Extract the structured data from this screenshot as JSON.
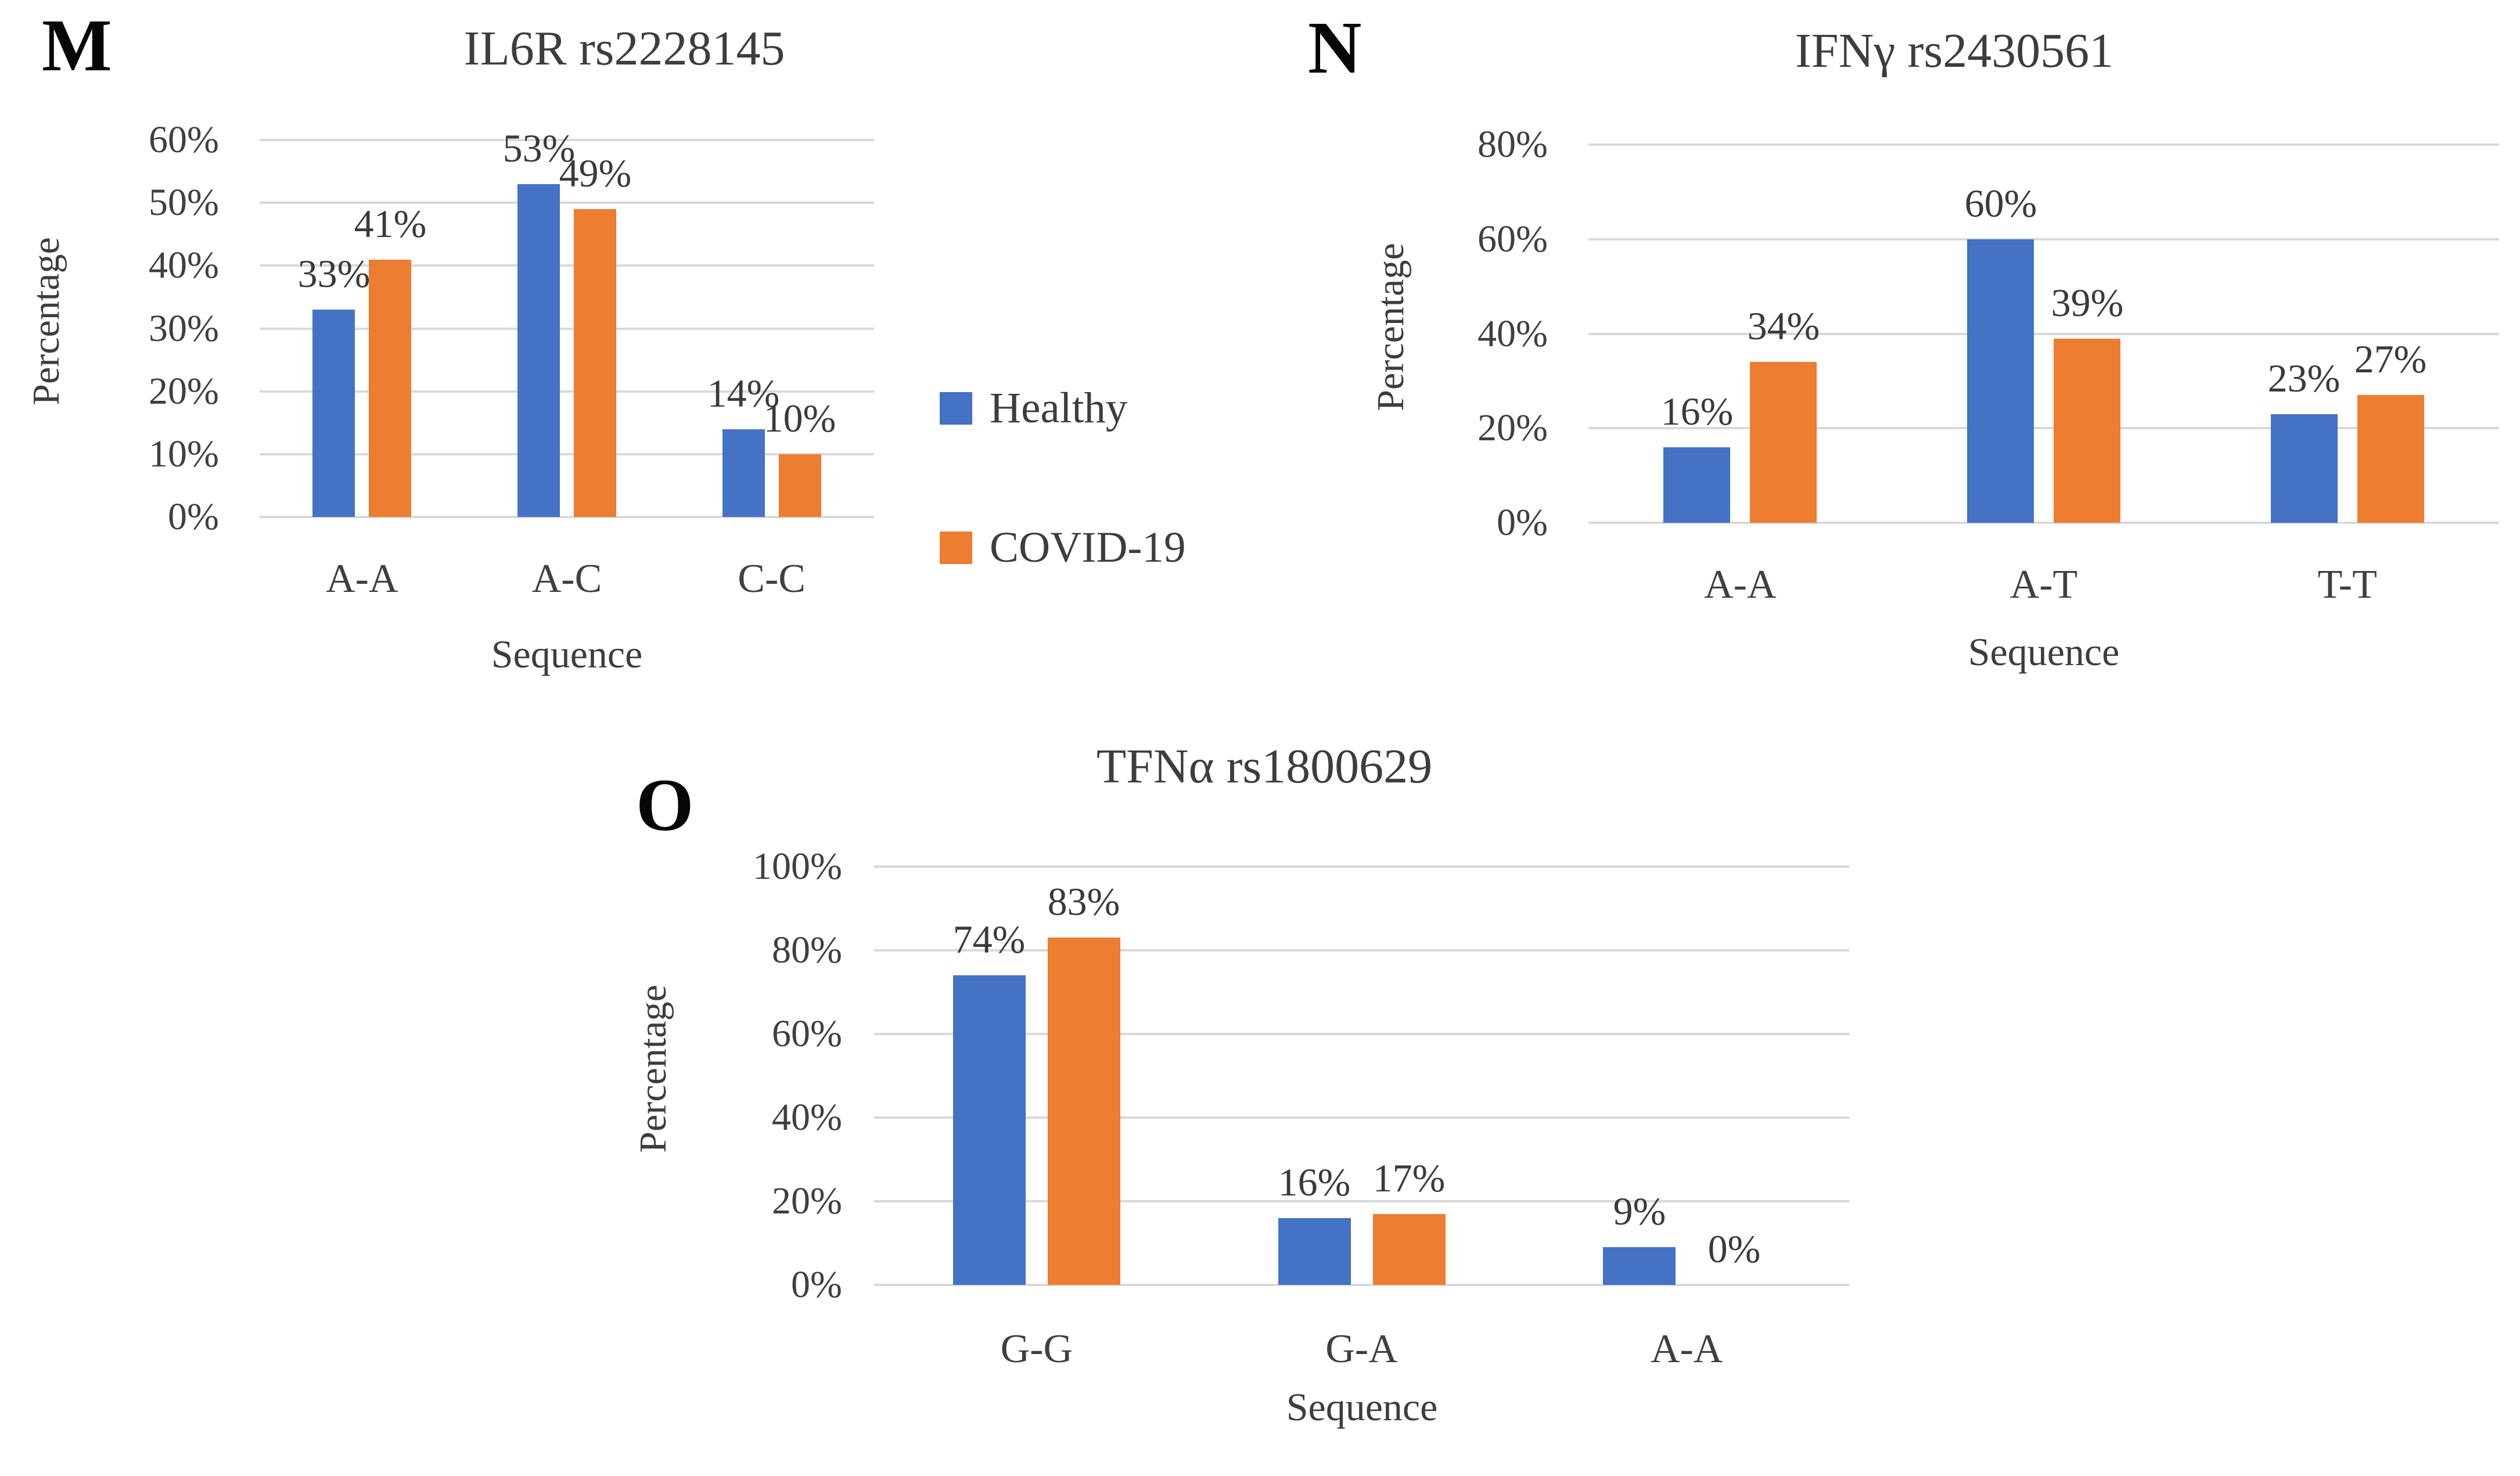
{
  "figure": {
    "background": "#ffffff",
    "description": "Three grouped bar charts comparing genotype frequencies in Healthy vs COVID-19 groups"
  },
  "colors": {
    "healthy": "#4472C4",
    "covid": "#ED7D31",
    "gridline": "#D9D9D9",
    "text": "#3f3f3f"
  },
  "legend": {
    "items": [
      {
        "label": "Healthy",
        "color": "#4472C4"
      },
      {
        "label": "COVID-19",
        "color": "#ED7D31"
      }
    ]
  },
  "chart_data": [
    {
      "type": "bar",
      "panel_label": "M",
      "title": "IL6R rs2228145",
      "xlabel": "Sequence",
      "ylabel": "Percentage",
      "categories": [
        "A-A",
        "A-C",
        "C-C"
      ],
      "series": [
        {
          "name": "Healthy",
          "color": "#4472C4",
          "values": [
            33,
            53,
            14
          ],
          "labels": [
            "33%",
            "53%",
            "14%"
          ]
        },
        {
          "name": "COVID-19",
          "color": "#ED7D31",
          "values": [
            41,
            49,
            10
          ],
          "labels": [
            "41%",
            "49%",
            "10%"
          ]
        }
      ],
      "ylim": [
        0,
        60
      ],
      "yticks": [
        {
          "value": 0,
          "label": "0%"
        },
        {
          "value": 10,
          "label": "10%"
        },
        {
          "value": 20,
          "label": "20%"
        },
        {
          "value": 30,
          "label": "30%"
        },
        {
          "value": 40,
          "label": "40%"
        },
        {
          "value": 50,
          "label": "50%"
        },
        {
          "value": 60,
          "label": "60%"
        }
      ],
      "grid": true,
      "legend_position": "right-of-chart"
    },
    {
      "type": "bar",
      "panel_label": "N",
      "title": "IFNγ rs2430561",
      "xlabel": "Sequence",
      "ylabel": "Percentage",
      "categories": [
        "A-A",
        "A-T",
        "T-T"
      ],
      "series": [
        {
          "name": "Healthy",
          "color": "#4472C4",
          "values": [
            16,
            60,
            23
          ],
          "labels": [
            "16%",
            "60%",
            "23%"
          ]
        },
        {
          "name": "COVID-19",
          "color": "#ED7D31",
          "values": [
            34,
            39,
            27
          ],
          "labels": [
            "34%",
            "39%",
            "27%"
          ]
        }
      ],
      "ylim": [
        0,
        80
      ],
      "yticks": [
        {
          "value": 0,
          "label": "0%"
        },
        {
          "value": 20,
          "label": "20%"
        },
        {
          "value": 40,
          "label": "40%"
        },
        {
          "value": 60,
          "label": "60%"
        },
        {
          "value": 80,
          "label": "80%"
        }
      ],
      "grid": true,
      "legend_position": "none"
    },
    {
      "type": "bar",
      "panel_label": "O",
      "title": "TFNα rs1800629",
      "xlabel": "Sequence",
      "ylabel": "Percentage",
      "categories": [
        "G-G",
        "G-A",
        "A-A"
      ],
      "series": [
        {
          "name": "Healthy",
          "color": "#4472C4",
          "values": [
            74,
            16,
            9
          ],
          "labels": [
            "74%",
            "16%",
            "9%"
          ]
        },
        {
          "name": "COVID-19",
          "color": "#ED7D31",
          "values": [
            83,
            17,
            0
          ],
          "labels": [
            "83%",
            "17%",
            "0%"
          ]
        }
      ],
      "ylim": [
        0,
        100
      ],
      "yticks": [
        {
          "value": 0,
          "label": "0%"
        },
        {
          "value": 20,
          "label": "20%"
        },
        {
          "value": 40,
          "label": "40%"
        },
        {
          "value": 60,
          "label": "60%"
        },
        {
          "value": 80,
          "label": "80%"
        },
        {
          "value": 100,
          "label": "100%"
        }
      ],
      "grid": true,
      "legend_position": "none"
    }
  ]
}
